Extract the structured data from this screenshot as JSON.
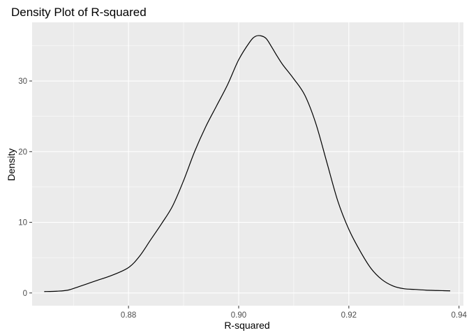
{
  "chart_data": {
    "type": "line",
    "title": "Density Plot of R-squared",
    "xlabel": "R-squared",
    "ylabel": "Density",
    "xlim": [
      0.8625,
      0.9408
    ],
    "ylim": [
      -1.8,
      38.3
    ],
    "x_ticks": [
      0.88,
      0.9,
      0.92,
      0.94
    ],
    "x_tick_labels": [
      "0.88",
      "0.90",
      "0.92",
      "0.94"
    ],
    "y_ticks": [
      0,
      10,
      20,
      30
    ],
    "y_tick_labels": [
      "0",
      "10",
      "20",
      "30"
    ],
    "grid": true,
    "legend": "none",
    "colors": {
      "panel": "#ebebeb",
      "grid": "#ffffff",
      "line": "#000000",
      "tick_text": "#4d4d4d"
    },
    "series": [
      {
        "x": [
          0.8647,
          0.867,
          0.869,
          0.871,
          0.874,
          0.877,
          0.88,
          0.882,
          0.884,
          0.886,
          0.888,
          0.89,
          0.892,
          0.894,
          0.896,
          0.898,
          0.9,
          0.902,
          0.903,
          0.904,
          0.905,
          0.906,
          0.907,
          0.908,
          0.91,
          0.912,
          0.914,
          0.916,
          0.918,
          0.92,
          0.922,
          0.924,
          0.926,
          0.928,
          0.93,
          0.932,
          0.934,
          0.936,
          0.9384
        ],
        "y": [
          0.2,
          0.25,
          0.4,
          0.9,
          1.7,
          2.5,
          3.6,
          5.2,
          7.5,
          9.8,
          12.3,
          15.9,
          20.0,
          23.5,
          26.5,
          29.5,
          33.0,
          35.5,
          36.3,
          36.4,
          36.0,
          34.8,
          33.5,
          32.3,
          30.3,
          28.0,
          24.0,
          18.5,
          13.0,
          9.0,
          6.0,
          3.5,
          1.9,
          1.0,
          0.6,
          0.5,
          0.4,
          0.35,
          0.3
        ]
      }
    ]
  }
}
